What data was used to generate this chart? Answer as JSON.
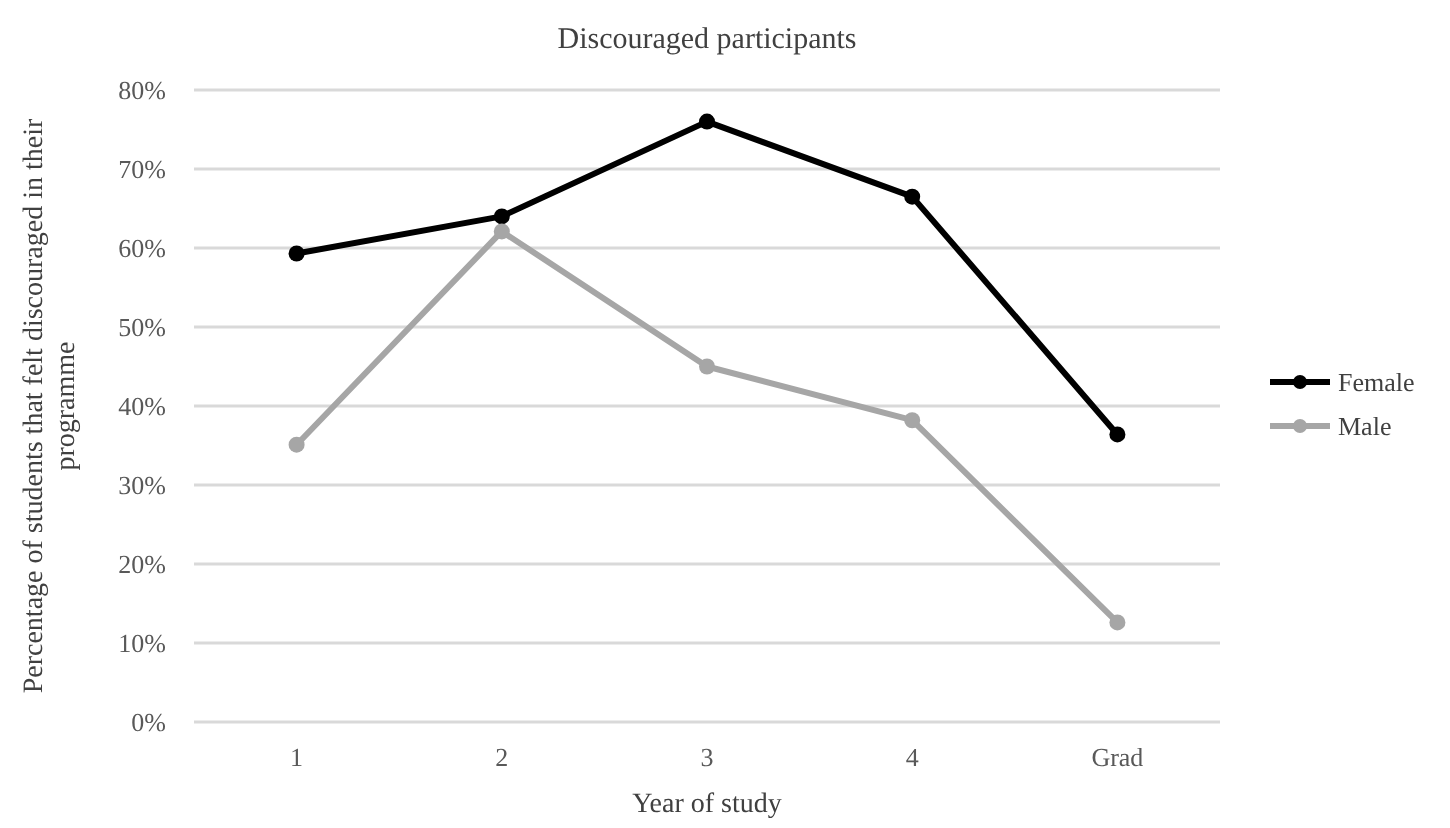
{
  "chart_data": {
    "type": "line",
    "title": "Discouraged participants",
    "xlabel": "Year of study",
    "ylabel": "Percentage of students that felt discouraged in their programme",
    "categories": [
      "1",
      "2",
      "3",
      "4",
      "Grad"
    ],
    "series": [
      {
        "name": "Female",
        "color": "#000000",
        "values": [
          59.3,
          64,
          76,
          66.5,
          36.4
        ]
      },
      {
        "name": "Male",
        "color": "#a6a6a6",
        "values": [
          35.1,
          62.1,
          45,
          38.2,
          12.6
        ]
      }
    ],
    "ylim": [
      0,
      80
    ],
    "yticks": [
      {
        "value": 0,
        "label": "0%"
      },
      {
        "value": 10,
        "label": "10%"
      },
      {
        "value": 20,
        "label": "20%"
      },
      {
        "value": 30,
        "label": "30%"
      },
      {
        "value": 40,
        "label": "40%"
      },
      {
        "value": 50,
        "label": "50%"
      },
      {
        "value": 60,
        "label": "60%"
      },
      {
        "value": 70,
        "label": "70%"
      },
      {
        "value": 80,
        "label": "80%"
      }
    ],
    "grid": "y",
    "legend": "right",
    "marker": "circle",
    "line_style": "solid"
  }
}
